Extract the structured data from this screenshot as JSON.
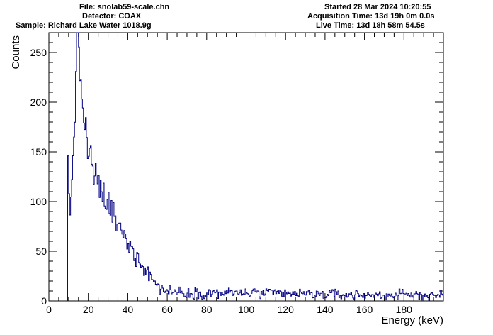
{
  "header": {
    "file": "File: snolab59-scale.chn",
    "detector": "Detector: COAX",
    "sample": "Sample: Richard Lake Water 1018.9g",
    "started": "Started 28 Mar 2024 10:20:55",
    "acq_time": "Acquisition Time: 13d 19h 0m 0.0s",
    "live_time": "Live Time: 13d 18h 58m 54.5s"
  },
  "chart_data": {
    "type": "histogram",
    "xlabel": "Energy (keV)",
    "ylabel": "Counts",
    "xlim": [
      0,
      200
    ],
    "ylim": [
      0,
      270
    ],
    "x_ticks": [
      0,
      20,
      40,
      60,
      80,
      100,
      120,
      140,
      160,
      180
    ],
    "y_ticks": [
      0,
      50,
      100,
      150,
      200,
      250
    ],
    "bin_width": 0.5,
    "x_start": 9.5,
    "line_color": "#000080",
    "grid": false,
    "legend": "none",
    "shape_points": [
      [
        9.5,
        172
      ],
      [
        10,
        120
      ],
      [
        10.5,
        80
      ],
      [
        11,
        90
      ],
      [
        11.5,
        115
      ],
      [
        12,
        140
      ],
      [
        13,
        180
      ],
      [
        14,
        250
      ],
      [
        15,
        252
      ],
      [
        16,
        225
      ],
      [
        17,
        205
      ],
      [
        18,
        180
      ],
      [
        19,
        165
      ],
      [
        20,
        150
      ],
      [
        22,
        135
      ],
      [
        24,
        120
      ],
      [
        26,
        112
      ],
      [
        28,
        104
      ],
      [
        30,
        96
      ],
      [
        32,
        90
      ],
      [
        34,
        80
      ],
      [
        36,
        72
      ],
      [
        38,
        65
      ],
      [
        40,
        58
      ],
      [
        42,
        52
      ],
      [
        44,
        47
      ],
      [
        46,
        42
      ],
      [
        48,
        35
      ],
      [
        50,
        30
      ],
      [
        52,
        24
      ],
      [
        55,
        15
      ],
      [
        58,
        12
      ],
      [
        60,
        10
      ],
      [
        70,
        8
      ],
      [
        100,
        8
      ],
      [
        130,
        7
      ],
      [
        160,
        6
      ],
      [
        190,
        6
      ],
      [
        200,
        6
      ]
    ]
  }
}
